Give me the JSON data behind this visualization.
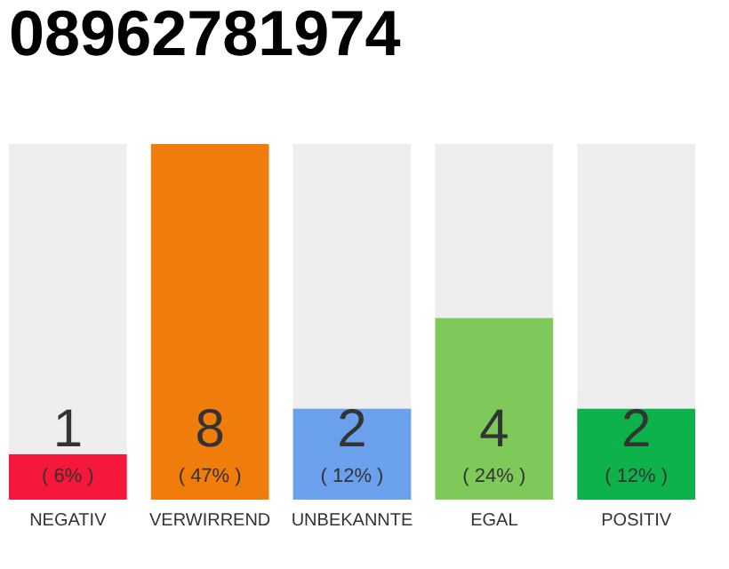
{
  "chart_data": {
    "type": "bar",
    "title": "08962781974",
    "categories": [
      "NEGATIV",
      "VERWIRREND",
      "UNBEKANNTE",
      "EGAL",
      "POSITIV"
    ],
    "values": [
      6,
      47,
      12,
      24,
      12
    ],
    "colors": [
      "#f5183a",
      "#f07c0c",
      "#6aa0ec",
      "#7ec95a",
      "#0db24a"
    ],
    "value_labels": [
      "( 6% )",
      "( 47% )",
      "( 12% )",
      "( 24% )",
      "( 12% )"
    ],
    "annotations": [
      "1",
      "8",
      "2",
      "4",
      "2"
    ],
    "tick_labels": "x",
    "grid": false
  }
}
